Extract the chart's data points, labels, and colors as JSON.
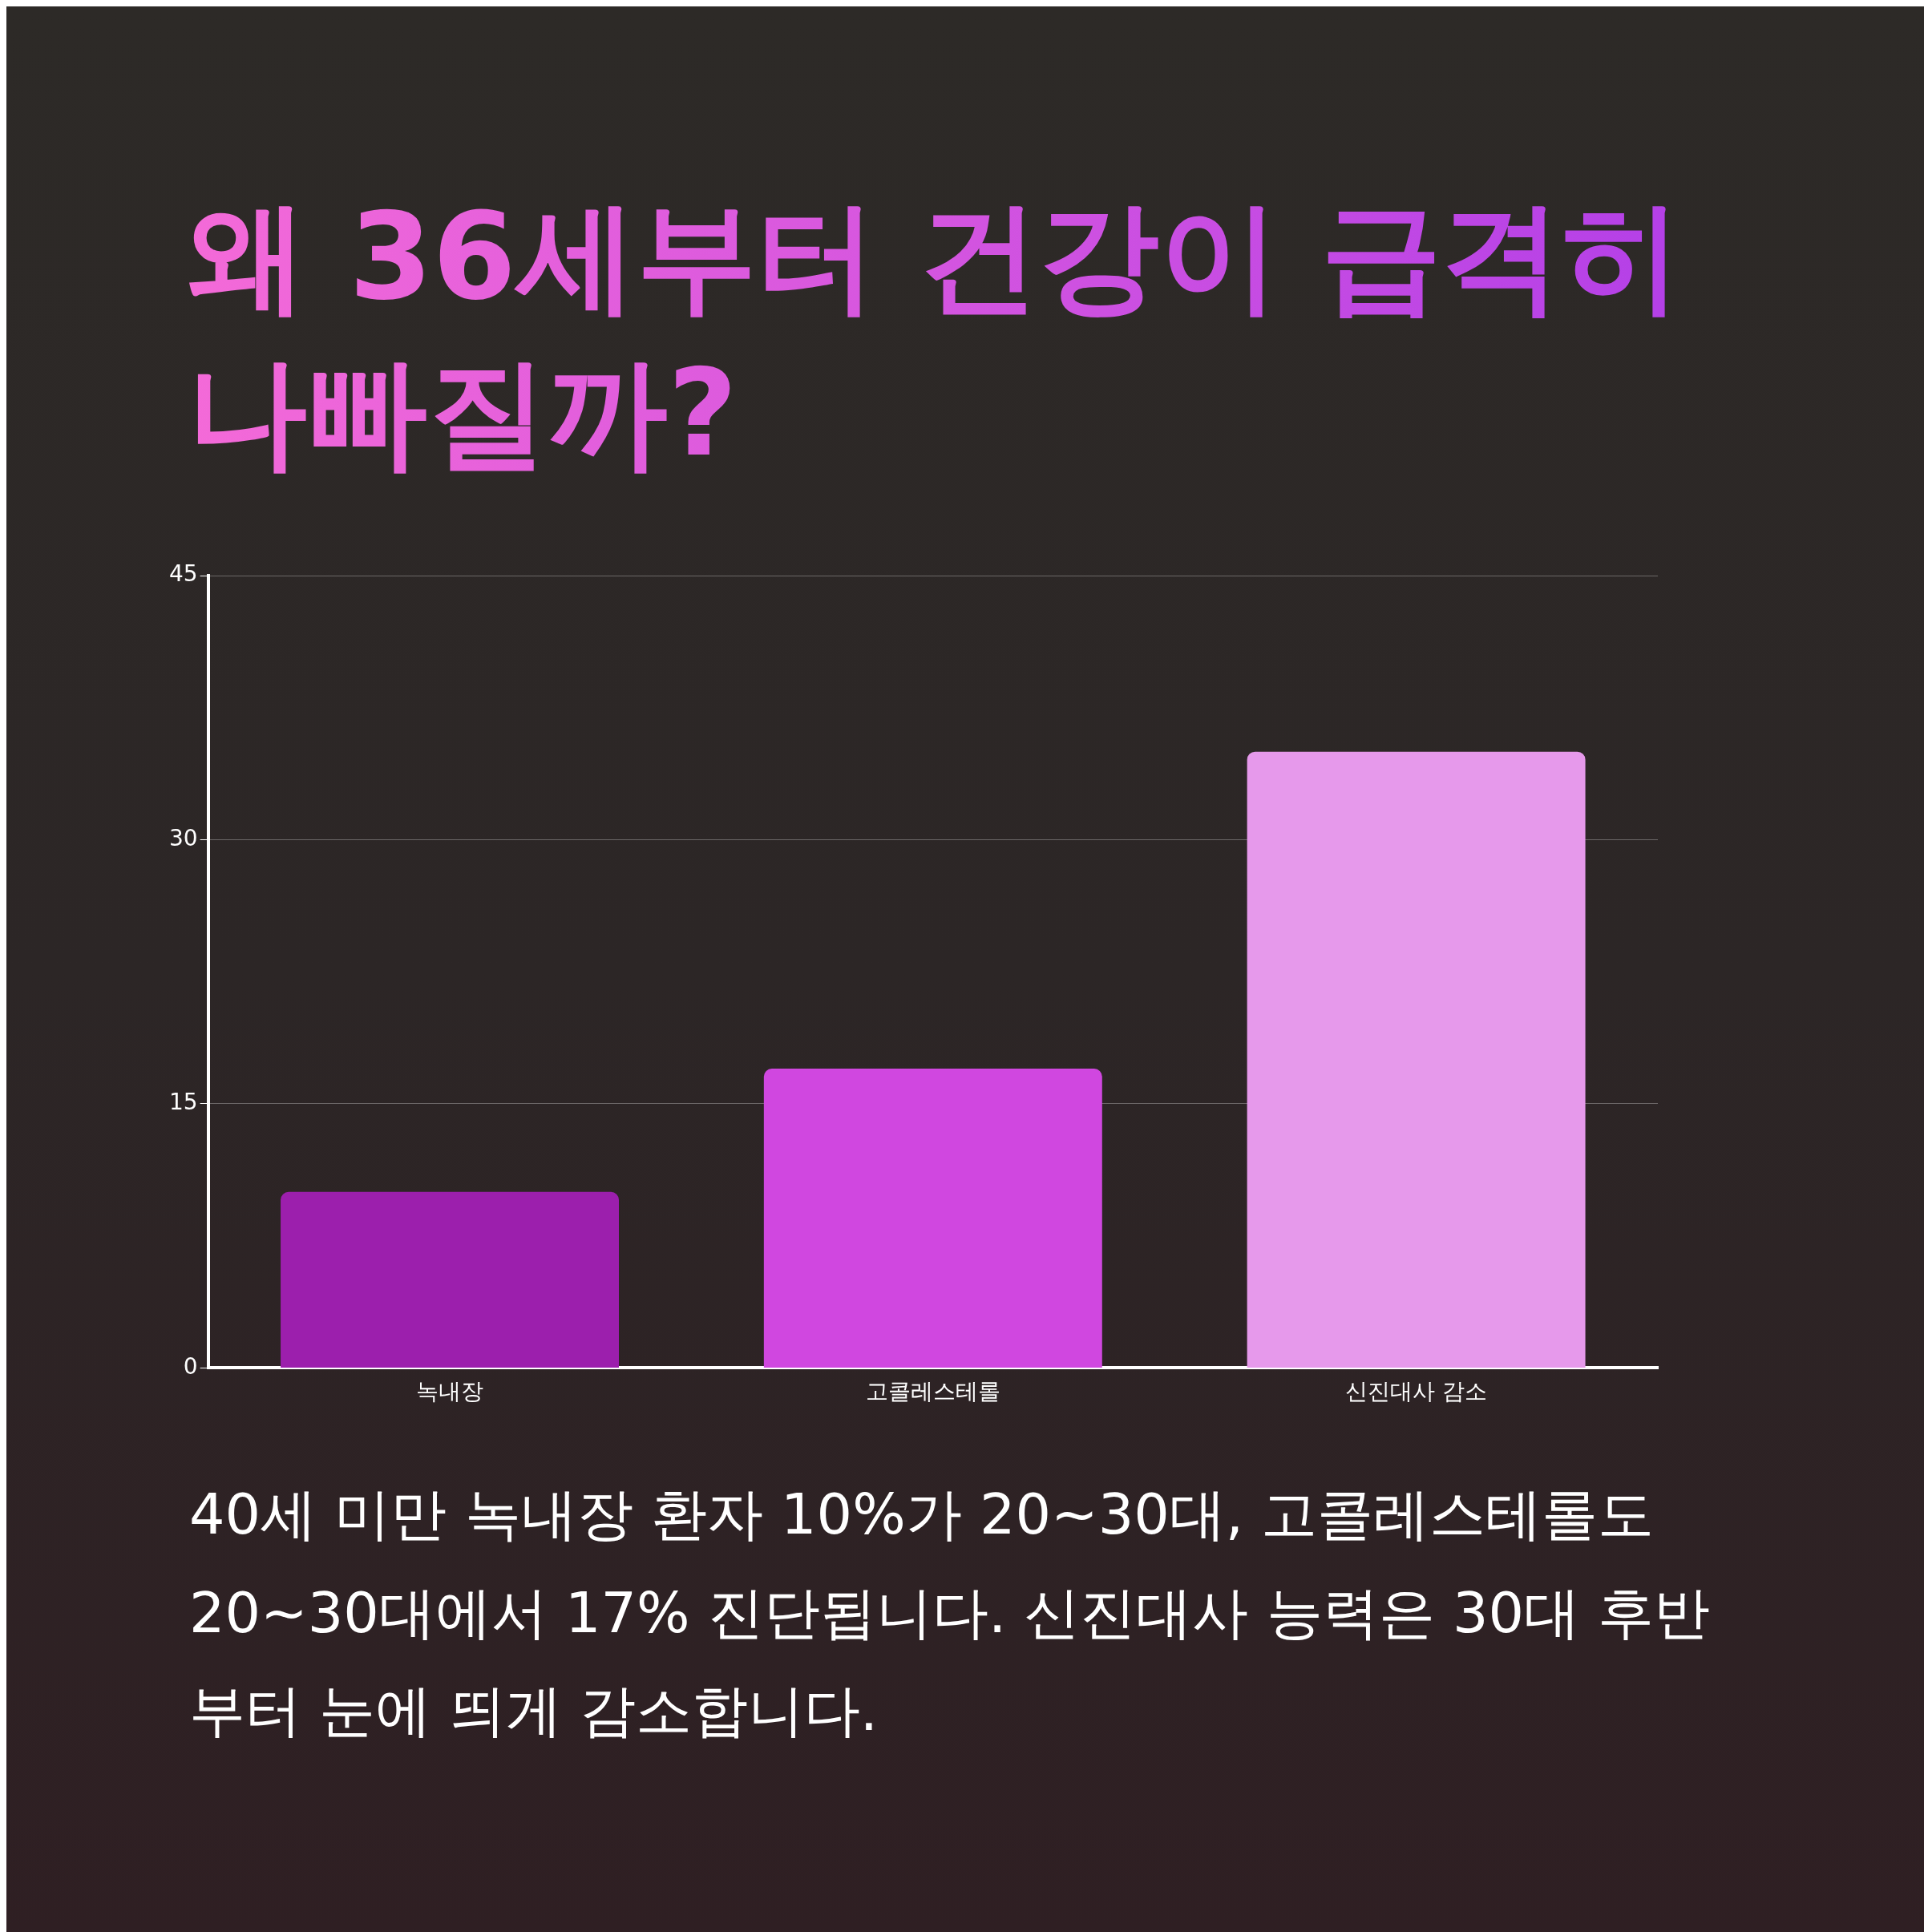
{
  "chart_data": {
    "type": "bar",
    "title": "왜 36세부터 건강이 급격히 나빠질까?",
    "categories": [
      "녹내장",
      "고콜레스테롤",
      "신진대사 감소"
    ],
    "values": [
      10,
      17,
      35
    ],
    "colors": [
      "#9c1fad",
      "#d047e0",
      "#e699eb"
    ],
    "ylim": [
      0,
      45
    ],
    "yticks": [
      0,
      15,
      30,
      45
    ],
    "grid": "y",
    "annotations": [
      "40세 미만 녹내장 환자 10%가 20~30대, 고콜레스테롤도 20~30대에서 17% 진단됩니다. 신진대사 능력은 30대 후반부터 눈에 띄게 감소합니다."
    ]
  }
}
